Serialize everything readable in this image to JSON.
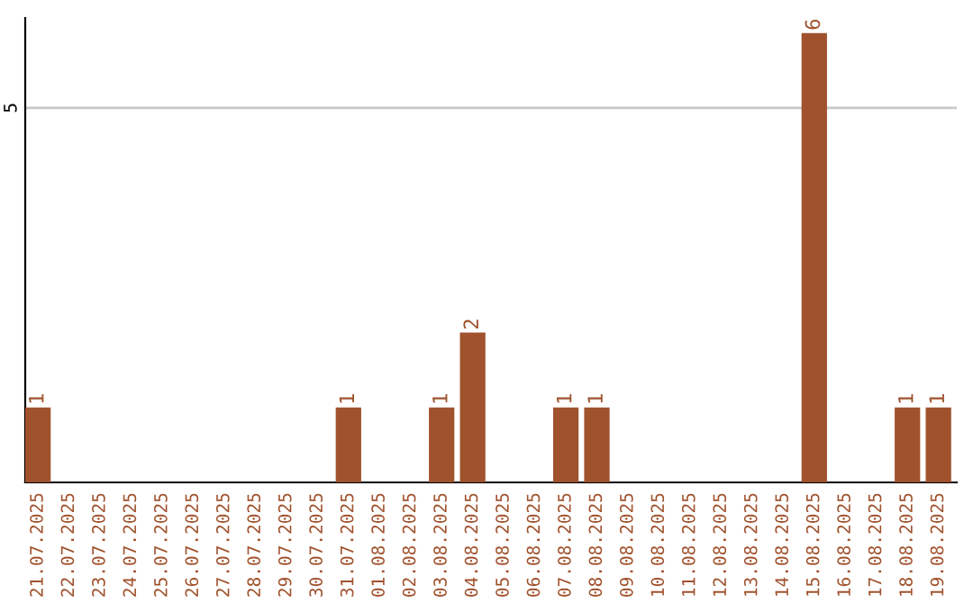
{
  "chart_data": {
    "type": "bar",
    "categories": [
      "21.07.2025",
      "22.07.2025",
      "23.07.2025",
      "24.07.2025",
      "25.07.2025",
      "26.07.2025",
      "27.07.2025",
      "28.07.2025",
      "29.07.2025",
      "30.07.2025",
      "31.07.2025",
      "01.08.2025",
      "02.08.2025",
      "03.08.2025",
      "04.08.2025",
      "05.08.2025",
      "06.08.2025",
      "07.08.2025",
      "08.08.2025",
      "09.08.2025",
      "10.08.2025",
      "11.08.2025",
      "12.08.2025",
      "13.08.2025",
      "14.08.2025",
      "15.08.2025",
      "16.08.2025",
      "17.08.2025",
      "18.08.2025",
      "19.08.2025"
    ],
    "values": [
      1,
      0,
      0,
      0,
      0,
      0,
      0,
      0,
      0,
      0,
      1,
      0,
      0,
      1,
      2,
      0,
      0,
      1,
      1,
      0,
      0,
      0,
      0,
      0,
      0,
      6,
      0,
      0,
      1,
      1
    ],
    "value_labels": [
      "1",
      null,
      null,
      null,
      null,
      null,
      null,
      null,
      null,
      null,
      "1",
      null,
      null,
      "1",
      "2",
      null,
      null,
      "1",
      "1",
      null,
      null,
      null,
      null,
      null,
      null,
      "6",
      null,
      null,
      "1",
      "1"
    ],
    "color": "#a0522d",
    "ylim": [
      0,
      6.2
    ],
    "yticks": [
      5
    ],
    "grid": "y",
    "legend": false
  }
}
